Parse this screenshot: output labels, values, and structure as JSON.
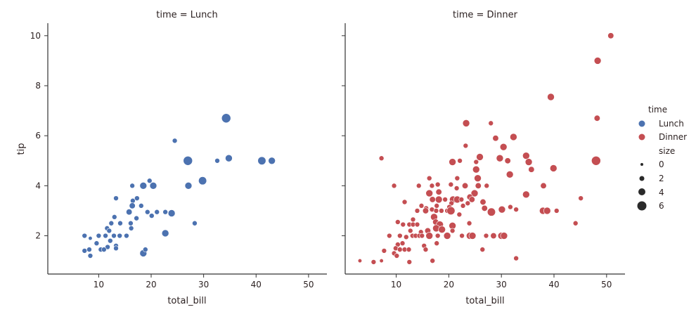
{
  "chart_data": {
    "type": "scatter",
    "x_field": "total_bill",
    "y_field": "tip",
    "hue_field": "time",
    "size_field": "size",
    "xlim": [
      0.3,
      53.5
    ],
    "ylim": [
      0.47,
      10.5
    ],
    "xticks": [
      10,
      20,
      30,
      40,
      50
    ],
    "yticks": [
      2,
      4,
      6,
      8,
      10
    ],
    "xlabel": "total_bill",
    "ylabel": "tip",
    "grid": false,
    "legend_position": "right",
    "legend": {
      "hue_title": "time",
      "hue_entries": [
        {
          "label": "Lunch",
          "color": "#4c72b0"
        },
        {
          "label": "Dinner",
          "color": "#c44e52"
        }
      ],
      "size_title": "size",
      "size_entries": [
        {
          "label": "0",
          "value": 0
        },
        {
          "label": "2",
          "value": 2
        },
        {
          "label": "4",
          "value": 4
        },
        {
          "label": "6",
          "value": 6
        }
      ]
    },
    "panels": [
      {
        "title": "time = Lunch",
        "color": "#4c72b0",
        "points": [
          [
            24.5,
            5.8,
            2
          ],
          [
            27.0,
            5.0,
            6
          ],
          [
            32.6,
            5.0,
            2
          ],
          [
            34.8,
            5.1,
            4
          ],
          [
            34.3,
            6.7,
            6
          ],
          [
            41.1,
            5.0,
            5
          ],
          [
            43.0,
            5.0,
            4
          ],
          [
            29.8,
            4.2,
            5
          ],
          [
            27.1,
            4.0,
            4
          ],
          [
            23.9,
            2.9,
            4
          ],
          [
            28.3,
            2.5,
            2
          ],
          [
            22.7,
            2.1,
            4
          ],
          [
            16.4,
            4.0,
            2
          ],
          [
            18.5,
            4.0,
            4
          ],
          [
            20.4,
            4.0,
            4
          ],
          [
            19.7,
            4.2,
            2
          ],
          [
            13.3,
            3.5,
            2
          ],
          [
            16.5,
            3.4,
            2
          ],
          [
            17.3,
            3.5,
            2
          ],
          [
            16.4,
            3.2,
            3
          ],
          [
            18.1,
            3.2,
            2
          ],
          [
            15.8,
            2.95,
            3
          ],
          [
            19.3,
            2.95,
            2
          ],
          [
            21.1,
            2.95,
            2
          ],
          [
            22.7,
            2.95,
            2
          ],
          [
            20.1,
            2.8,
            2
          ],
          [
            13.0,
            2.75,
            2
          ],
          [
            12.4,
            2.5,
            2
          ],
          [
            14.1,
            2.5,
            2
          ],
          [
            16.1,
            2.5,
            2
          ],
          [
            17.2,
            2.7,
            2
          ],
          [
            11.6,
            2.3,
            2
          ],
          [
            12.0,
            2.2,
            2
          ],
          [
            16.2,
            2.3,
            2
          ],
          [
            7.3,
            2.0,
            2
          ],
          [
            8.4,
            1.9,
            1
          ],
          [
            10.0,
            2.0,
            2
          ],
          [
            11.3,
            2.0,
            2
          ],
          [
            12.9,
            2.0,
            2
          ],
          [
            14.0,
            2.0,
            2
          ],
          [
            15.3,
            2.0,
            2
          ],
          [
            9.6,
            1.7,
            2
          ],
          [
            12.2,
            1.8,
            2
          ],
          [
            13.3,
            1.6,
            2
          ],
          [
            11.7,
            1.55,
            2
          ],
          [
            13.3,
            1.5,
            2
          ],
          [
            7.3,
            1.4,
            2
          ],
          [
            8.2,
            1.45,
            2
          ],
          [
            10.4,
            1.45,
            2
          ],
          [
            11.0,
            1.45,
            2
          ],
          [
            8.4,
            1.2,
            2
          ],
          [
            18.5,
            1.3,
            4
          ],
          [
            18.9,
            1.45,
            2
          ]
        ]
      },
      {
        "title": "time = Dinner",
        "color": "#c44e52",
        "points": [
          [
            50.8,
            10.0,
            3
          ],
          [
            48.3,
            9.0,
            4
          ],
          [
            48.2,
            6.7,
            3
          ],
          [
            39.4,
            7.55,
            4
          ],
          [
            23.3,
            6.5,
            4
          ],
          [
            28.0,
            6.5,
            2
          ],
          [
            48.0,
            5.0,
            6
          ],
          [
            45.1,
            3.5,
            2
          ],
          [
            44.1,
            2.5,
            2
          ],
          [
            7.2,
            5.1,
            2
          ],
          [
            20.7,
            4.95,
            4
          ],
          [
            22.1,
            5.0,
            2
          ],
          [
            23.2,
            5.6,
            2
          ],
          [
            28.9,
            5.9,
            3
          ],
          [
            32.3,
            5.95,
            4
          ],
          [
            30.4,
            5.55,
            4
          ],
          [
            25.9,
            5.15,
            4
          ],
          [
            29.7,
            5.1,
            4
          ],
          [
            31.2,
            5.0,
            3
          ],
          [
            34.7,
            5.2,
            4
          ],
          [
            35.2,
            4.95,
            4
          ],
          [
            35.7,
            4.65,
            3
          ],
          [
            39.9,
            4.7,
            4
          ],
          [
            25.2,
            4.65,
            4
          ],
          [
            25.2,
            4.95,
            2
          ],
          [
            25.5,
            4.3,
            4
          ],
          [
            31.6,
            4.45,
            4
          ],
          [
            38.0,
            4.0,
            3
          ],
          [
            34.7,
            3.65,
            4
          ],
          [
            27.2,
            4.0,
            2
          ],
          [
            25.6,
            4.0,
            3
          ],
          [
            23.1,
            4.0,
            3
          ],
          [
            21.6,
            4.3,
            2
          ],
          [
            16.3,
            4.3,
            2
          ],
          [
            17.9,
            4.05,
            2
          ],
          [
            20.4,
            4.05,
            2
          ],
          [
            21.5,
            3.9,
            2
          ],
          [
            14.3,
            4.0,
            2
          ],
          [
            16.8,
            4.0,
            2
          ],
          [
            9.6,
            4.0,
            2
          ],
          [
            24.9,
            3.7,
            4
          ],
          [
            24.0,
            3.55,
            3
          ],
          [
            24.4,
            3.45,
            3
          ],
          [
            26.5,
            3.35,
            3
          ],
          [
            18.1,
            3.75,
            3
          ],
          [
            16.3,
            3.7,
            4
          ],
          [
            18.1,
            3.45,
            4
          ],
          [
            16.9,
            3.45,
            3
          ],
          [
            19.3,
            3.45,
            2
          ],
          [
            20.8,
            3.45,
            4
          ],
          [
            21.6,
            3.45,
            4
          ],
          [
            22.4,
            3.45,
            2
          ],
          [
            23.6,
            3.3,
            2
          ],
          [
            22.7,
            3.2,
            2
          ],
          [
            11.6,
            3.35,
            2
          ],
          [
            17.7,
            3.2,
            2
          ],
          [
            20.5,
            3.3,
            2
          ],
          [
            20.1,
            3.15,
            2
          ],
          [
            14.8,
            3.2,
            2
          ],
          [
            15.7,
            3.1,
            2
          ],
          [
            14.0,
            3.0,
            2
          ],
          [
            15.6,
            3.0,
            3
          ],
          [
            16.8,
            3.05,
            2
          ],
          [
            17.6,
            3.0,
            2
          ],
          [
            18.6,
            3.0,
            2
          ],
          [
            19.7,
            3.0,
            2
          ],
          [
            20.4,
            3.0,
            5
          ],
          [
            22.0,
            2.85,
            2
          ],
          [
            26.8,
            3.1,
            3
          ],
          [
            28.1,
            2.95,
            5
          ],
          [
            30.1,
            3.05,
            4
          ],
          [
            31.7,
            3.15,
            2
          ],
          [
            32.8,
            3.05,
            2
          ],
          [
            37.9,
            3.0,
            4
          ],
          [
            38.7,
            3.0,
            4
          ],
          [
            40.5,
            3.0,
            2
          ],
          [
            17.2,
            2.75,
            4
          ],
          [
            17.5,
            2.55,
            3
          ],
          [
            18.3,
            2.45,
            4
          ],
          [
            17.6,
            2.3,
            4
          ],
          [
            18.7,
            2.25,
            4
          ],
          [
            20.7,
            2.4,
            4
          ],
          [
            20.7,
            2.2,
            2
          ],
          [
            23.9,
            2.5,
            2
          ],
          [
            13.2,
            2.65,
            2
          ],
          [
            10.3,
            2.55,
            2
          ],
          [
            11.3,
            2.45,
            2
          ],
          [
            12.5,
            2.45,
            2
          ],
          [
            13.2,
            2.45,
            2
          ],
          [
            14.0,
            2.45,
            2
          ],
          [
            12.7,
            2.2,
            2
          ],
          [
            14.7,
            2.15,
            2
          ],
          [
            16.0,
            2.2,
            3
          ],
          [
            16.3,
            2.0,
            4
          ],
          [
            19.7,
            2.0,
            4
          ],
          [
            17.9,
            2.0,
            2
          ],
          [
            8.7,
            2.0,
            2
          ],
          [
            10.7,
            2.0,
            2
          ],
          [
            11.9,
            1.95,
            2
          ],
          [
            13.1,
            2.0,
            2
          ],
          [
            13.7,
            2.0,
            2
          ],
          [
            14.4,
            2.0,
            2
          ],
          [
            14.9,
            2.0,
            2
          ],
          [
            22.5,
            2.0,
            2
          ],
          [
            24.0,
            2.0,
            4
          ],
          [
            24.5,
            2.0,
            4
          ],
          [
            27.1,
            2.0,
            2
          ],
          [
            28.5,
            2.0,
            3
          ],
          [
            30.0,
            2.0,
            4
          ],
          [
            30.5,
            2.0,
            4
          ],
          [
            11.2,
            1.7,
            2
          ],
          [
            10.3,
            1.65,
            2
          ],
          [
            9.9,
            1.5,
            2
          ],
          [
            10.7,
            1.45,
            2
          ],
          [
            11.6,
            1.45,
            2
          ],
          [
            12.4,
            1.45,
            2
          ],
          [
            9.6,
            1.3,
            2
          ],
          [
            10.1,
            1.2,
            2
          ],
          [
            7.7,
            1.4,
            2
          ],
          [
            15.3,
            1.6,
            2
          ],
          [
            15.6,
            1.45,
            2
          ],
          [
            17.7,
            1.7,
            2
          ],
          [
            26.4,
            1.45,
            2
          ],
          [
            32.8,
            1.1,
            2
          ],
          [
            12.5,
            0.95,
            2
          ],
          [
            16.9,
            1.0,
            2
          ],
          [
            5.7,
            0.95,
            2
          ],
          [
            3.1,
            1.0,
            1
          ],
          [
            7.2,
            1.0,
            1
          ]
        ]
      }
    ]
  }
}
